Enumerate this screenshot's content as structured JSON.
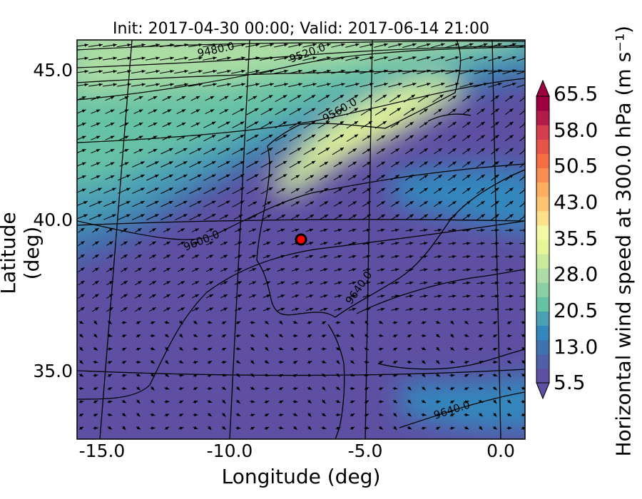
{
  "title": "Init: 2017-04-30 00:00; Valid: 2017-06-14 21:00",
  "xlabel": "Longitude (deg)",
  "ylabel": "Latitude (deg)",
  "x_ticks": [
    "-15.0",
    "-10.0",
    "-5.0",
    "0.0"
  ],
  "y_ticks": [
    "45.0",
    "40.0",
    "35.0"
  ],
  "colorbar": {
    "label": "Horizontal wind speed at 300.0 hPa (m s⁻¹)",
    "ticks": [
      "65.5",
      "58.0",
      "50.5",
      "43.0",
      "35.5",
      "28.0",
      "20.5",
      "13.0",
      "5.5"
    ],
    "colors": [
      "#5e4fa2",
      "#4f60a8",
      "#3f73ae",
      "#3288bd",
      "#4a9eb5",
      "#66c2a5",
      "#8ccfa4",
      "#abdda4",
      "#c9e99e",
      "#e6f598",
      "#f2f9a7",
      "#fee08b",
      "#fdc573",
      "#fdae61",
      "#f98e52",
      "#f46d43",
      "#e55549",
      "#d53e4f",
      "#b11c48",
      "#9e0142"
    ]
  },
  "contour_labels": [
    "9480.0",
    "9520.0",
    "9560.0",
    "9600.0",
    "9640.0",
    "9640.0"
  ],
  "marker": {
    "lon": -7.7,
    "lat": 39.35,
    "color": "#ff0000"
  },
  "chart_data": {
    "type": "heatmap",
    "title": "Init: 2017-04-30 00:00; Valid: 2017-06-14 21:00",
    "xlabel": "Longitude (deg)",
    "ylabel": "Latitude (deg)",
    "xlim": [
      -16,
      0.2
    ],
    "ylim": [
      32.7,
      46
    ],
    "x_ticks": [
      -15.0,
      -10.0,
      -5.0,
      0.0
    ],
    "y_ticks": [
      45.0,
      40.0,
      35.0
    ],
    "colorbar_range": [
      5.5,
      65.5
    ],
    "colorbar_ticks": [
      5.5,
      13.0,
      20.5,
      28.0,
      35.5,
      43.0,
      50.5,
      58.0,
      65.5
    ],
    "geopotential_contours": [
      9480.0,
      9520.0,
      9560.0,
      9600.0,
      9640.0
    ],
    "point": {
      "lon": -7.7,
      "lat": 39.35
    }
  }
}
